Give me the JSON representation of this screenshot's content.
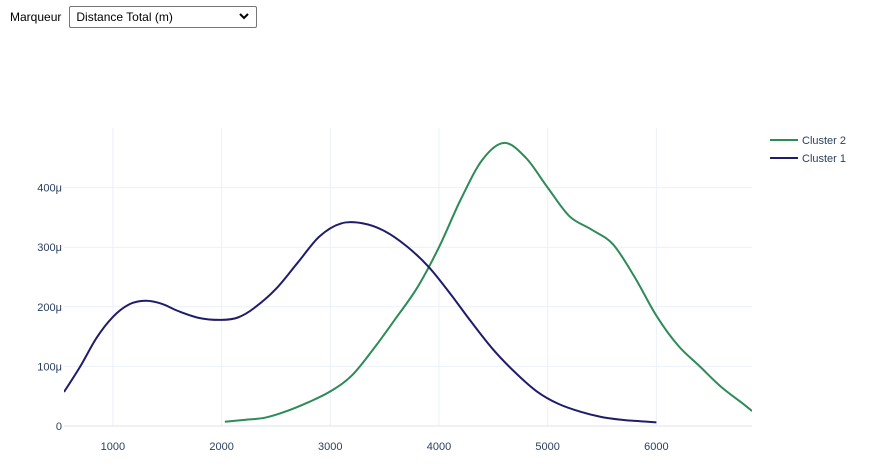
{
  "control": {
    "label": "Marqueur",
    "selected": "Distance Total (m)"
  },
  "chart_data": {
    "type": "line",
    "title": "",
    "xlabel": "",
    "ylabel": "",
    "xlim": [
      550,
      6880
    ],
    "ylim": [
      0,
      500
    ],
    "x_ticks": [
      1000,
      2000,
      3000,
      4000,
      5000,
      6000
    ],
    "x_tick_labels": [
      "1000",
      "2000",
      "3000",
      "4000",
      "5000",
      "6000"
    ],
    "y_ticks": [
      0,
      100,
      200,
      300,
      400
    ],
    "y_tick_labels": [
      "0",
      "100μ",
      "200μ",
      "300μ",
      "400μ"
    ],
    "grid": true,
    "legend_position": "top-right",
    "series": [
      {
        "name": "Cluster 2",
        "color": "#2e8b57",
        "points": [
          [
            2030,
            7
          ],
          [
            2200,
            10
          ],
          [
            2400,
            14
          ],
          [
            2600,
            25
          ],
          [
            2800,
            40
          ],
          [
            3000,
            58
          ],
          [
            3200,
            85
          ],
          [
            3400,
            130
          ],
          [
            3600,
            180
          ],
          [
            3800,
            232
          ],
          [
            4000,
            300
          ],
          [
            4200,
            380
          ],
          [
            4400,
            447
          ],
          [
            4600,
            475
          ],
          [
            4800,
            450
          ],
          [
            5000,
            400
          ],
          [
            5200,
            352
          ],
          [
            5400,
            330
          ],
          [
            5600,
            305
          ],
          [
            5800,
            250
          ],
          [
            6000,
            185
          ],
          [
            6200,
            135
          ],
          [
            6400,
            100
          ],
          [
            6600,
            65
          ],
          [
            6800,
            37
          ],
          [
            6880,
            25
          ]
        ]
      },
      {
        "name": "Cluster 1",
        "color": "#1f1c6b",
        "points": [
          [
            550,
            57
          ],
          [
            700,
            100
          ],
          [
            850,
            148
          ],
          [
            1000,
            183
          ],
          [
            1150,
            204
          ],
          [
            1300,
            210
          ],
          [
            1450,
            205
          ],
          [
            1600,
            193
          ],
          [
            1800,
            181
          ],
          [
            2000,
            178
          ],
          [
            2150,
            182
          ],
          [
            2300,
            198
          ],
          [
            2500,
            230
          ],
          [
            2700,
            274
          ],
          [
            2900,
            318
          ],
          [
            3100,
            340
          ],
          [
            3300,
            340
          ],
          [
            3500,
            327
          ],
          [
            3700,
            302
          ],
          [
            3900,
            268
          ],
          [
            4100,
            223
          ],
          [
            4300,
            174
          ],
          [
            4500,
            128
          ],
          [
            4700,
            90
          ],
          [
            4900,
            58
          ],
          [
            5100,
            37
          ],
          [
            5300,
            24
          ],
          [
            5500,
            15
          ],
          [
            5700,
            10
          ],
          [
            5850,
            8
          ],
          [
            6000,
            6
          ]
        ]
      }
    ]
  }
}
